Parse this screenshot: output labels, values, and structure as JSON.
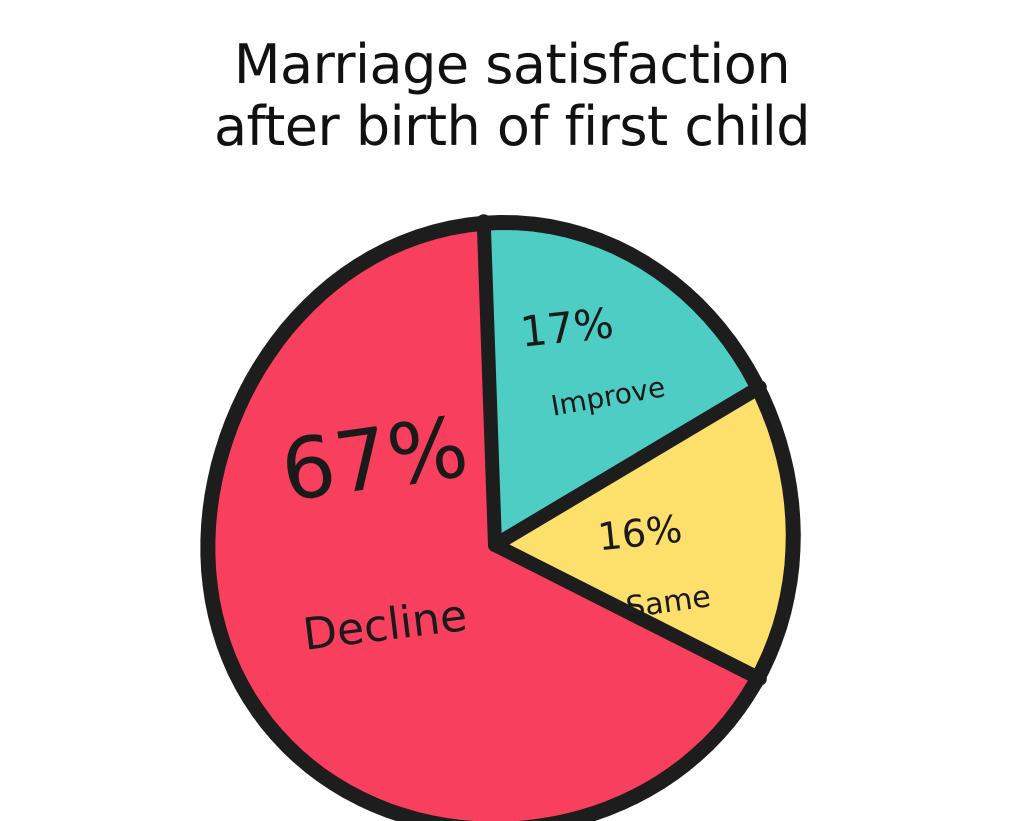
{
  "chart_data": {
    "type": "pie",
    "title_lines": [
      "Marriage satisfaction",
      "after birth of first child"
    ],
    "slices": [
      {
        "label": "Decline",
        "percent_text": "67%",
        "value": 67,
        "color": "#F83F5E"
      },
      {
        "label": "Improve",
        "percent_text": "17%",
        "value": 17,
        "color": "#4ECDC4"
      },
      {
        "label": "Same",
        "percent_text": "16%",
        "value": 16,
        "color": "#FDE06B"
      }
    ]
  },
  "colors": {
    "outline": "#1d1d1d",
    "background": "#ffffff"
  }
}
